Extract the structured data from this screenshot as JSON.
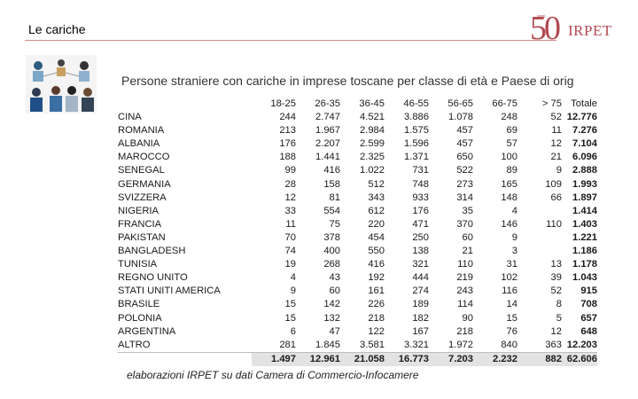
{
  "header": {
    "title": "Le cariche"
  },
  "logo": {
    "number": "50",
    "tagline": "anni",
    "name": "IRPET"
  },
  "slide": {
    "subtitle": "Persone straniere con cariche in imprese toscane per classe di età e Paese di orig",
    "source": "elaborazioni IRPET  su dati Camera di Commercio-Infocamere"
  },
  "table": {
    "columns": [
      "18-25",
      "26-35",
      "36-45",
      "46-55",
      "56-65",
      "66-75",
      "> 75",
      "Totale"
    ],
    "rows": [
      {
        "country": "CINA",
        "values": [
          "244",
          "2.747",
          "4.521",
          "3.886",
          "1.078",
          "248",
          "52",
          "12.776"
        ]
      },
      {
        "country": "ROMANIA",
        "values": [
          "213",
          "1.967",
          "2.984",
          "1.575",
          "457",
          "69",
          "11",
          "7.276"
        ]
      },
      {
        "country": "ALBANIA",
        "values": [
          "176",
          "2.207",
          "2.599",
          "1.596",
          "457",
          "57",
          "12",
          "7.104"
        ]
      },
      {
        "country": "MAROCCO",
        "values": [
          "188",
          "1.441",
          "2.325",
          "1.371",
          "650",
          "100",
          "21",
          "6.096"
        ]
      },
      {
        "country": "SENEGAL",
        "values": [
          "99",
          "416",
          "1.022",
          "731",
          "522",
          "89",
          "9",
          "2.888"
        ]
      },
      {
        "country": "GERMANIA",
        "values": [
          "28",
          "158",
          "512",
          "748",
          "273",
          "165",
          "109",
          "1.993"
        ]
      },
      {
        "country": "SVIZZERA",
        "values": [
          "12",
          "81",
          "343",
          "933",
          "314",
          "148",
          "66",
          "1.897"
        ]
      },
      {
        "country": "NIGERIA",
        "values": [
          "33",
          "554",
          "612",
          "176",
          "35",
          "4",
          "",
          "1.414"
        ]
      },
      {
        "country": "FRANCIA",
        "values": [
          "11",
          "75",
          "220",
          "471",
          "370",
          "146",
          "110",
          "1.403"
        ]
      },
      {
        "country": "PAKISTAN",
        "values": [
          "70",
          "378",
          "454",
          "250",
          "60",
          "9",
          "",
          "1.221"
        ]
      },
      {
        "country": "BANGLADESH",
        "values": [
          "74",
          "400",
          "550",
          "138",
          "21",
          "3",
          "",
          "1.186"
        ]
      },
      {
        "country": "TUNISIA",
        "values": [
          "19",
          "268",
          "416",
          "321",
          "110",
          "31",
          "13",
          "1.178"
        ]
      },
      {
        "country": "REGNO UNITO",
        "values": [
          "4",
          "43",
          "192",
          "444",
          "219",
          "102",
          "39",
          "1.043"
        ]
      },
      {
        "country": "STATI UNITI AMERICA",
        "values": [
          "9",
          "60",
          "161",
          "274",
          "243",
          "116",
          "52",
          "915"
        ]
      },
      {
        "country": "BRASILE",
        "values": [
          "15",
          "142",
          "226",
          "189",
          "114",
          "14",
          "8",
          "708"
        ]
      },
      {
        "country": "POLONIA",
        "values": [
          "15",
          "132",
          "218",
          "182",
          "90",
          "15",
          "5",
          "657"
        ]
      },
      {
        "country": "ARGENTINA",
        "values": [
          "6",
          "47",
          "122",
          "167",
          "218",
          "76",
          "12",
          "648"
        ]
      },
      {
        "country": "ALTRO",
        "values": [
          "281",
          "1.845",
          "3.581",
          "3.321",
          "1.972",
          "840",
          "363",
          "12.203"
        ]
      }
    ],
    "totals": [
      "1.497",
      "12.961",
      "21.058",
      "16.773",
      "7.203",
      "2.232",
      "882",
      "62.606"
    ]
  },
  "colors": {
    "accent": "#b24a52",
    "rule": "#d98a8a",
    "total_bg": "#e3e3e3"
  },
  "icons": {
    "illustration": "people-collage-icon"
  }
}
